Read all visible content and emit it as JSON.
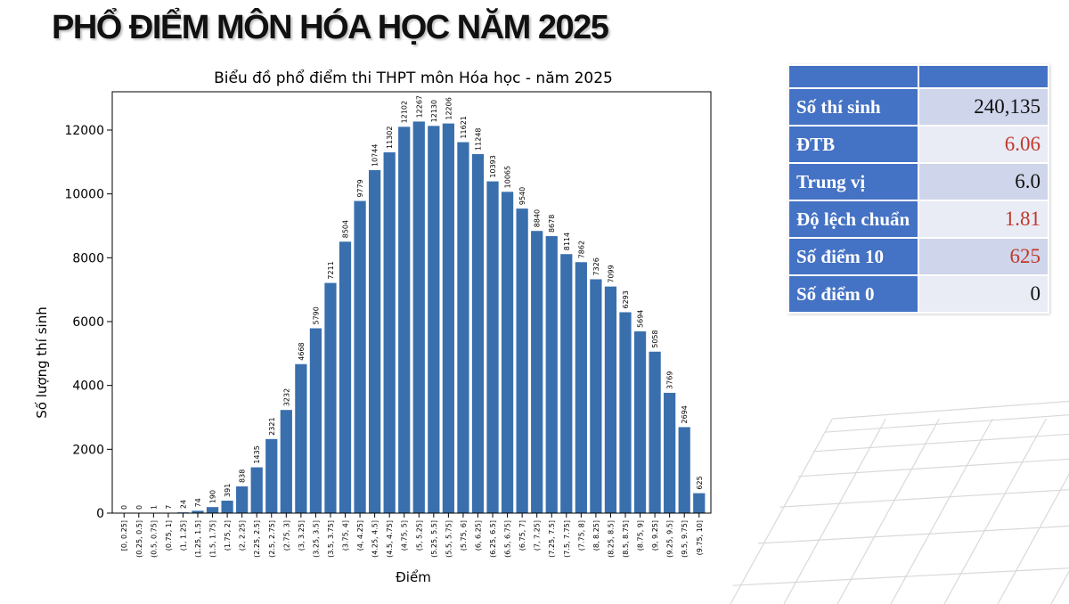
{
  "slide": {
    "title": "PHỔ ĐIỂM MÔN HÓA HỌC NĂM 2025"
  },
  "chart_data": {
    "type": "bar",
    "title": "Biểu đồ phổ điểm thi THPT môn Hóa học - năm 2025",
    "xlabel": "Điểm",
    "ylabel": "Số lượng thí sinh",
    "categories": [
      "[0, 0.25]",
      "(0.25, 0.5]",
      "(0.5, 0.75]",
      "(0.75, 1]",
      "(1, 1.25]",
      "(1.25, 1.5]",
      "(1.5, 1.75]",
      "(1.75, 2]",
      "(2, 2.25]",
      "(2.25, 2.5]",
      "(2.5, 2.75]",
      "(2.75, 3]",
      "(3, 3.25]",
      "(3.25, 3.5]",
      "(3.5, 3.75]",
      "(3.75, 4]",
      "(4, 4.25]",
      "(4.25, 4.5]",
      "(4.5, 4.75]",
      "(4.75, 5]",
      "(5, 5.25]",
      "(5.25, 5.5]",
      "(5.5, 5.75]",
      "(5.75, 6]",
      "(6, 6.25]",
      "(6.25, 6.5]",
      "(6.5, 6.75]",
      "(6.75, 7]",
      "(7, 7.25]",
      "(7.25, 7.5]",
      "(7.5, 7.75]",
      "(7.75, 8]",
      "(8, 8.25]",
      "(8.25, 8.5]",
      "(8.5, 8.75]",
      "(8.75, 9]",
      "(9, 9.25]",
      "(9.25, 9.5]",
      "(9.5, 9.75]",
      "(9.75, 10]"
    ],
    "values": [
      0,
      0,
      1,
      7,
      24,
      74,
      190,
      391,
      838,
      1435,
      2321,
      3232,
      4668,
      5790,
      7211,
      8504,
      9779,
      10744,
      11302,
      12102,
      12267,
      12130,
      12206,
      11621,
      11248,
      10393,
      10065,
      9540,
      8840,
      8678,
      8114,
      7862,
      7326,
      7099,
      6293,
      5694,
      5058,
      3769,
      2694,
      625
    ],
    "yticks": [
      0,
      2000,
      4000,
      6000,
      8000,
      10000,
      12000
    ],
    "ylim": [
      0,
      13200
    ],
    "bar_color": "#3a6fad",
    "grid": false,
    "legend": "none"
  },
  "stats": {
    "rows": [
      {
        "label": "Số thí sinh",
        "value": "240,135"
      },
      {
        "label": "ĐTB",
        "value": "6.06"
      },
      {
        "label": "Trung vị",
        "value": "6.0"
      },
      {
        "label": "Độ lệch chuẩn",
        "value": "1.81"
      },
      {
        "label": "Số điểm 10",
        "value": "625"
      },
      {
        "label": "Số điểm 0",
        "value": "0"
      }
    ],
    "header_color": "#4472c4",
    "highlight_color": "#c0392b"
  }
}
